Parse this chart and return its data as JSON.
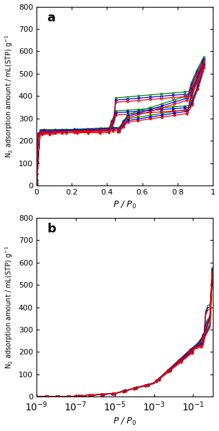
{
  "panel_a_label": "a",
  "panel_b_label": "b",
  "ylabel": "N$_2$ adsorption amount / mL(STP) g$^{-1}$",
  "xlabel": "$P$ / $P_0$",
  "ylim": [
    0,
    800
  ],
  "yticks": [
    0,
    100,
    200,
    300,
    400,
    500,
    600,
    700,
    800
  ],
  "colors": {
    "green": "#008000",
    "blue": "#0000EE",
    "red": "#EE0000"
  },
  "series": [
    {
      "name": "green_filled",
      "color": "green",
      "filled": true,
      "p1": 245,
      "p2": 300,
      "p3": 340,
      "pend": 550
    },
    {
      "name": "blue_filled",
      "color": "blue",
      "filled": true,
      "p1": 240,
      "p2": 292,
      "p3": 332,
      "pend": 540
    },
    {
      "name": "red_filled",
      "color": "red",
      "filled": true,
      "p1": 234,
      "p2": 285,
      "p3": 322,
      "pend": 528
    },
    {
      "name": "green_open",
      "color": "green",
      "filled": false,
      "p1": 248,
      "p2": 320,
      "p3": 400,
      "pend": 575
    },
    {
      "name": "blue_open",
      "color": "blue",
      "filled": false,
      "p1": 245,
      "p2": 312,
      "p3": 390,
      "pend": 565
    },
    {
      "name": "red_open",
      "color": "red",
      "filled": false,
      "p1": 240,
      "p2": 305,
      "p3": 380,
      "pend": 555
    }
  ]
}
